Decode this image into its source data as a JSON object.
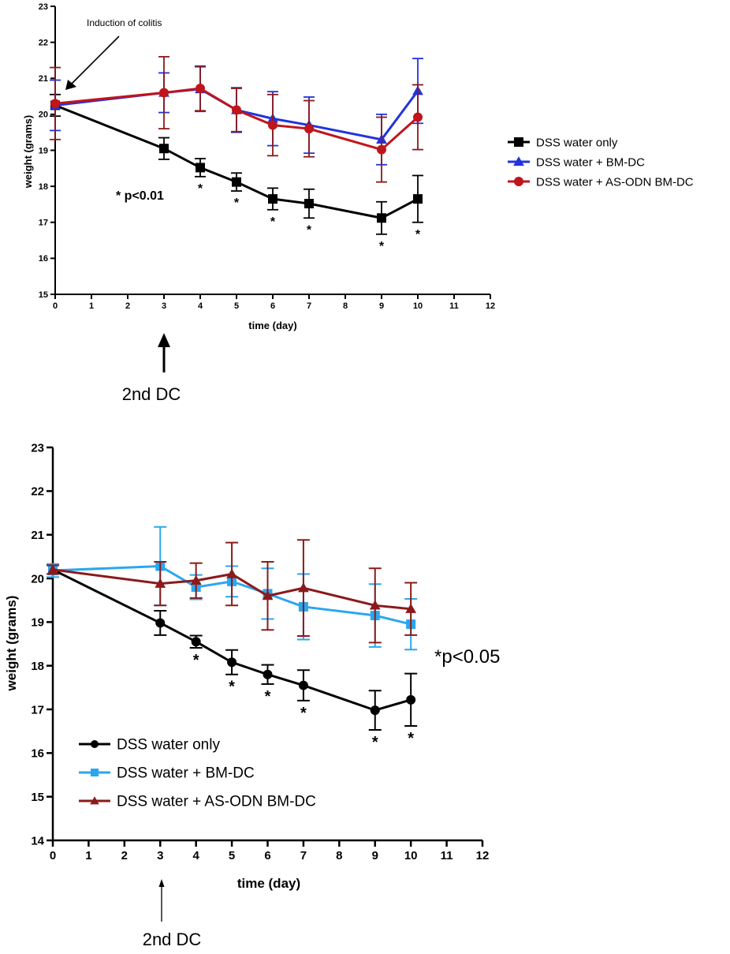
{
  "chart_data": [
    {
      "type": "line",
      "xlabel": "time (day)",
      "ylabel": "weight (grams)",
      "xlim": [
        0,
        12
      ],
      "ylim": [
        15,
        23
      ],
      "xticks": [
        "0",
        "1",
        "2",
        "3",
        "4",
        "5",
        "6",
        "7",
        "8",
        "9",
        "10",
        "11",
        "12"
      ],
      "yticks": [
        "15",
        "16",
        "17",
        "18",
        "19",
        "20",
        "21",
        "22",
        "23"
      ],
      "series": [
        {
          "name": "DSS water only",
          "marker": "square",
          "color": "#000000",
          "errcolor": "#000000",
          "x": [
            0,
            3,
            4,
            5,
            6,
            7,
            9,
            10
          ],
          "y": [
            20.25,
            19.05,
            18.52,
            18.12,
            17.65,
            17.52,
            17.12,
            17.65
          ],
          "err": [
            0.3,
            0.3,
            0.25,
            0.25,
            0.3,
            0.4,
            0.45,
            0.65
          ]
        },
        {
          "name": "DSS water + BM-DC",
          "marker": "triangle",
          "color": "#2233dd",
          "errcolor": "#2233dd",
          "x": [
            0,
            3,
            4,
            5,
            6,
            7,
            9,
            10
          ],
          "y": [
            20.25,
            20.6,
            20.7,
            20.12,
            19.88,
            19.7,
            19.3,
            20.65
          ],
          "err": [
            0.7,
            0.55,
            0.62,
            0.62,
            0.75,
            0.78,
            0.7,
            0.9
          ]
        },
        {
          "name": "DSS water + AS-ODN BM-DC",
          "marker": "circle",
          "color": "#c0151b",
          "errcolor": "#8b1a1a",
          "x": [
            0,
            3,
            4,
            5,
            6,
            7,
            9,
            10
          ],
          "y": [
            20.3,
            20.6,
            20.72,
            20.12,
            19.7,
            19.6,
            19.02,
            19.92
          ],
          "err": [
            1.0,
            1.0,
            0.62,
            0.6,
            0.85,
            0.78,
            0.9,
            0.9
          ]
        }
      ],
      "significance": {
        "label": "* p<0.01",
        "star": "*",
        "days": [
          4,
          5,
          6,
          7,
          9,
          10
        ]
      },
      "annotations": {
        "induction": "Induction of colitis",
        "second_dc": "2nd DC"
      },
      "legend": "right"
    },
    {
      "type": "line",
      "xlabel": "time (day)",
      "ylabel": "weight (grams)",
      "xlim": [
        0,
        12
      ],
      "ylim": [
        14,
        23
      ],
      "xticks": [
        "0",
        "1",
        "2",
        "3",
        "4",
        "5",
        "6",
        "7",
        "8",
        "9",
        "10",
        "11",
        "12"
      ],
      "yticks": [
        "14",
        "15",
        "16",
        "17",
        "18",
        "19",
        "20",
        "21",
        "22",
        "23"
      ],
      "series": [
        {
          "name": "DSS water only",
          "marker": "circle",
          "color": "#000000",
          "errcolor": "#000000",
          "x": [
            0,
            3,
            4,
            5,
            6,
            7,
            9,
            10
          ],
          "y": [
            20.2,
            18.98,
            18.55,
            18.08,
            17.8,
            17.55,
            16.98,
            17.22
          ],
          "err": [
            0.1,
            0.28,
            0.14,
            0.28,
            0.22,
            0.35,
            0.45,
            0.6
          ]
        },
        {
          "name": "DSS water + BM-DC",
          "marker": "square",
          "color": "#2aa7ee",
          "errcolor": "#2aa7ee",
          "x": [
            0,
            3,
            4,
            5,
            6,
            7,
            9,
            10
          ],
          "y": [
            20.18,
            20.28,
            19.8,
            19.93,
            19.65,
            19.35,
            19.15,
            18.95
          ],
          "err": [
            0.15,
            0.9,
            0.28,
            0.35,
            0.58,
            0.75,
            0.72,
            0.58
          ]
        },
        {
          "name": "DSS water + AS-ODN BM-DC",
          "marker": "triangle",
          "color": "#8b1a1a",
          "errcolor": "#8b1a1a",
          "x": [
            0,
            3,
            4,
            5,
            6,
            7,
            9,
            10
          ],
          "y": [
            20.2,
            19.88,
            19.95,
            20.1,
            19.6,
            19.78,
            19.38,
            19.3
          ],
          "err": [
            0.1,
            0.5,
            0.4,
            0.72,
            0.78,
            1.1,
            0.85,
            0.6
          ]
        }
      ],
      "significance": {
        "label": "*p<0.05",
        "star": "*",
        "days": [
          4,
          5,
          6,
          7,
          9,
          10
        ]
      },
      "annotations": {
        "second_dc": "2nd DC"
      },
      "legend": "bottom-left"
    }
  ]
}
